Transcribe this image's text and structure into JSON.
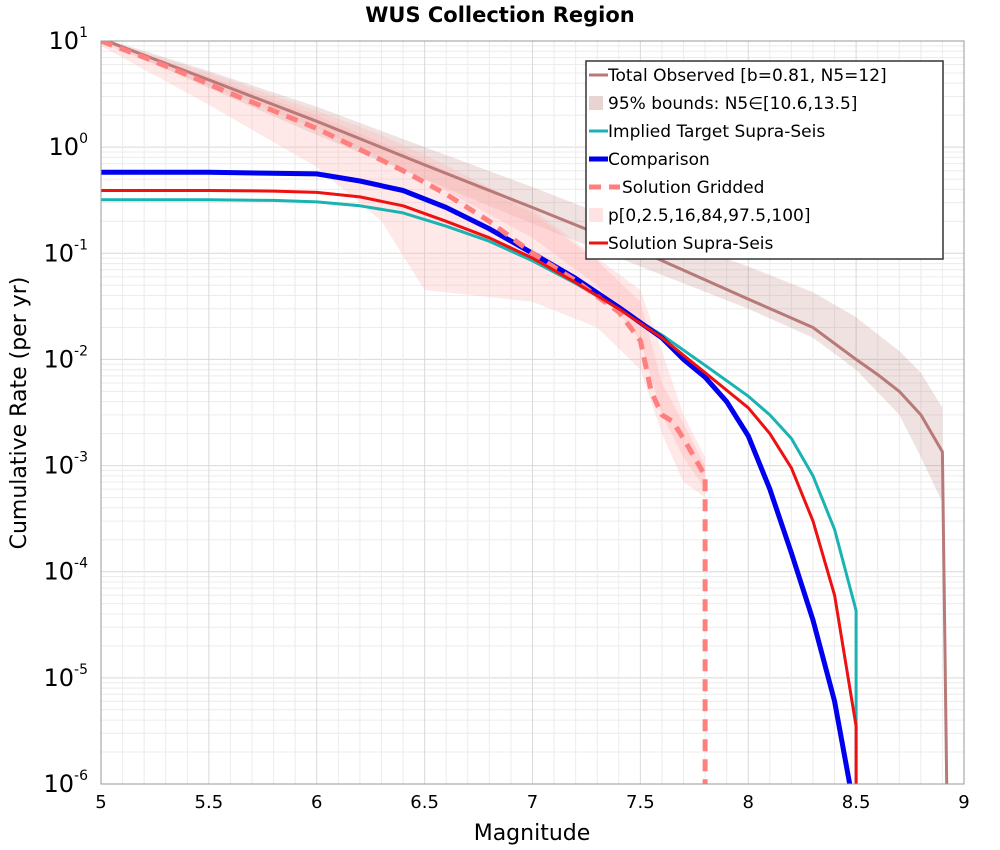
{
  "chart_data": {
    "type": "line",
    "title": "WUS Collection Region",
    "xlabel": "Magnitude",
    "ylabel": "Cumulative Rate (per yr)",
    "xlim": [
      5,
      9
    ],
    "ylim": [
      1e-06,
      10
    ],
    "yscale": "log",
    "grid": true,
    "legend_position": "top-right",
    "x_ticks": [
      "5",
      "5.5",
      "6",
      "6.5",
      "7",
      "7.5",
      "8",
      "8.5",
      "9"
    ],
    "y_ticks": [
      {
        "base": "10",
        "exp": "-6",
        "value": 1e-06
      },
      {
        "base": "10",
        "exp": "-5",
        "value": 1e-05
      },
      {
        "base": "10",
        "exp": "-4",
        "value": 0.0001
      },
      {
        "base": "10",
        "exp": "-3",
        "value": 0.001
      },
      {
        "base": "10",
        "exp": "-2",
        "value": 0.01
      },
      {
        "base": "10",
        "exp": "-1",
        "value": 0.1
      },
      {
        "base": "10",
        "exp": "0",
        "value": 1
      },
      {
        "base": "10",
        "exp": "1",
        "value": 10
      }
    ],
    "bands": [
      {
        "name": "95% bounds: N5∈[10.6,13.5]",
        "color": "#b77a78",
        "opacity": 0.22,
        "x": [
          5.0,
          5.5,
          6.0,
          6.5,
          7.0,
          7.5,
          8.0,
          8.3,
          8.5,
          8.7,
          8.8,
          8.9
        ],
        "upper": [
          10.8,
          5.2,
          2.4,
          1.0,
          0.42,
          0.17,
          0.075,
          0.043,
          0.025,
          0.012,
          0.0075,
          0.0035
        ],
        "lower": [
          10.2,
          3.6,
          1.3,
          0.5,
          0.19,
          0.075,
          0.03,
          0.016,
          0.008,
          0.003,
          0.0012,
          0.00045
        ]
      },
      {
        "name": "p[0,2.5,16,84,97.5,100]",
        "color": "#ffb3b3",
        "opacity": 0.3,
        "x": [
          5.0,
          5.5,
          6.0,
          6.3,
          6.5,
          7.0,
          7.3,
          7.5,
          7.6,
          7.7,
          7.8
        ],
        "upper": [
          10.5,
          5.0,
          2.2,
          1.3,
          0.85,
          0.26,
          0.09,
          0.045,
          0.012,
          0.003,
          0.0012
        ],
        "lower": [
          9.0,
          2.5,
          0.65,
          0.2,
          0.045,
          0.035,
          0.02,
          0.008,
          0.002,
          0.0007,
          0.0005
        ]
      },
      {
        "name": "p[0,2.5,16,84,97.5,100] inner",
        "color": "#ffb3b3",
        "opacity": 0.35,
        "x": [
          5.0,
          5.5,
          6.0,
          6.5,
          7.0,
          7.3,
          7.5,
          7.6,
          7.7,
          7.8
        ],
        "upper": [
          10.3,
          4.6,
          2.0,
          0.75,
          0.24,
          0.085,
          0.035,
          0.006,
          0.0025,
          0.001
        ],
        "lower": [
          9.6,
          3.8,
          1.5,
          0.5,
          0.14,
          0.05,
          0.015,
          0.003,
          0.0012,
          0.0006
        ]
      }
    ],
    "series": [
      {
        "name": "Total Observed [b=0.81, N5=12]",
        "color": "#b77a78",
        "width": 3,
        "dash": "",
        "x": [
          5.0,
          5.5,
          6.0,
          6.5,
          7.0,
          7.5,
          8.0,
          8.3,
          8.5,
          8.6,
          8.7,
          8.8,
          8.9,
          8.92
        ],
        "y": [
          10.5,
          4.3,
          1.75,
          0.68,
          0.27,
          0.105,
          0.037,
          0.02,
          0.01,
          0.0072,
          0.005,
          0.003,
          0.00135,
          1e-06
        ]
      },
      {
        "name": "Implied Target Supra-Seis",
        "color": "#19b3b3",
        "width": 3,
        "dash": "",
        "x": [
          5.0,
          5.5,
          5.8,
          6.0,
          6.2,
          6.4,
          6.6,
          6.8,
          7.0,
          7.2,
          7.4,
          7.6,
          7.8,
          8.0,
          8.1,
          8.2,
          8.3,
          8.4,
          8.5,
          8.5
        ],
        "y": [
          0.32,
          0.32,
          0.315,
          0.305,
          0.28,
          0.24,
          0.18,
          0.13,
          0.085,
          0.052,
          0.03,
          0.017,
          0.0088,
          0.0045,
          0.003,
          0.0018,
          0.0008,
          0.00025,
          4.3e-05,
          1e-06
        ]
      },
      {
        "name": "Comparison",
        "color": "#0000ee",
        "width": 5,
        "dash": "",
        "x": [
          5.0,
          5.5,
          6.0,
          6.2,
          6.4,
          6.6,
          6.8,
          7.0,
          7.2,
          7.4,
          7.6,
          7.7,
          7.8,
          7.9,
          8.0,
          8.1,
          8.2,
          8.3,
          8.4,
          8.47
        ],
        "y": [
          0.58,
          0.58,
          0.56,
          0.48,
          0.39,
          0.27,
          0.17,
          0.1,
          0.058,
          0.031,
          0.016,
          0.01,
          0.0068,
          0.004,
          0.0019,
          0.0006,
          0.00015,
          3.5e-05,
          6e-06,
          1e-06
        ]
      },
      {
        "name": "Solution Gridded",
        "color": "#ff7f7f",
        "width": 5,
        "dash": "12,8",
        "x": [
          5.0,
          5.2,
          5.4,
          5.6,
          5.8,
          6.0,
          6.2,
          6.4,
          6.6,
          6.8,
          7.0,
          7.2,
          7.4,
          7.5,
          7.55,
          7.6,
          7.65,
          7.7,
          7.8,
          7.8
        ],
        "y": [
          10.0,
          7.0,
          4.8,
          3.2,
          2.2,
          1.5,
          0.95,
          0.6,
          0.36,
          0.2,
          0.1,
          0.055,
          0.028,
          0.015,
          0.005,
          0.003,
          0.0026,
          0.0018,
          0.0008,
          1e-06
        ]
      },
      {
        "name": "Solution Supra-Seis",
        "color": "#ee1111",
        "width": 3,
        "dash": "",
        "x": [
          5.0,
          5.5,
          5.8,
          6.0,
          6.2,
          6.4,
          6.6,
          6.8,
          7.0,
          7.2,
          7.4,
          7.6,
          7.8,
          8.0,
          8.1,
          8.2,
          8.3,
          8.4,
          8.5,
          8.5
        ],
        "y": [
          0.39,
          0.39,
          0.385,
          0.375,
          0.34,
          0.28,
          0.2,
          0.14,
          0.09,
          0.053,
          0.03,
          0.016,
          0.0075,
          0.0035,
          0.002,
          0.00095,
          0.0003,
          6e-05,
          3.5e-06,
          1e-06
        ]
      }
    ],
    "legend": [
      {
        "label": "Total Observed [b=0.81, N5=12]",
        "kind": "line",
        "color": "#b77a78",
        "width": 3,
        "dash": ""
      },
      {
        "label": "95% bounds: N5∈[10.6,13.5]",
        "kind": "patch",
        "color": "#ead3d3"
      },
      {
        "label": "Implied Target Supra-Seis",
        "kind": "line",
        "color": "#19b3b3",
        "width": 3,
        "dash": ""
      },
      {
        "label": "Comparison",
        "kind": "line",
        "color": "#0000ee",
        "width": 5,
        "dash": ""
      },
      {
        "label": "Solution Gridded",
        "kind": "line",
        "color": "#ff7f7f",
        "width": 5,
        "dash": "12,8"
      },
      {
        "label": "p[0,2.5,16,84,97.5,100]",
        "kind": "patch",
        "color": "#ffe3e3"
      },
      {
        "label": "Solution Supra-Seis",
        "kind": "line",
        "color": "#ee1111",
        "width": 3,
        "dash": ""
      }
    ]
  }
}
